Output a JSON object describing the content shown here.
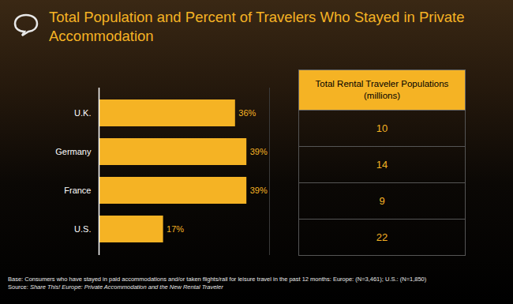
{
  "chart_data": {
    "type": "bar",
    "title": "Total Population and Percent of Travelers Who Stayed in Private Accommodation",
    "orientation": "horizontal",
    "categories": [
      "U.K.",
      "Germany",
      "France",
      "U.S."
    ],
    "values": [
      36,
      39,
      39,
      17
    ],
    "value_labels": [
      "36%",
      "39%",
      "39%",
      "17%"
    ],
    "data_labels": true,
    "color": "#f5b324",
    "xlim": [
      0,
      45
    ],
    "xticks": [],
    "tick_labels": "y"
  },
  "table": {
    "header": "Total Rental Traveler  Populations (millions)",
    "rows": [
      10,
      14,
      9,
      22
    ]
  },
  "footnotes": {
    "base": "Base: Consumers who have stayed in paid accommodations and/or taken flights/rail for leisure travel in the past 12 months: Europe: (N=3,461); U.S.: (N=1,850)",
    "source_label": "Source:",
    "source_title": "Share This! Europe: Private Accommodation and the New Rental Traveler"
  }
}
